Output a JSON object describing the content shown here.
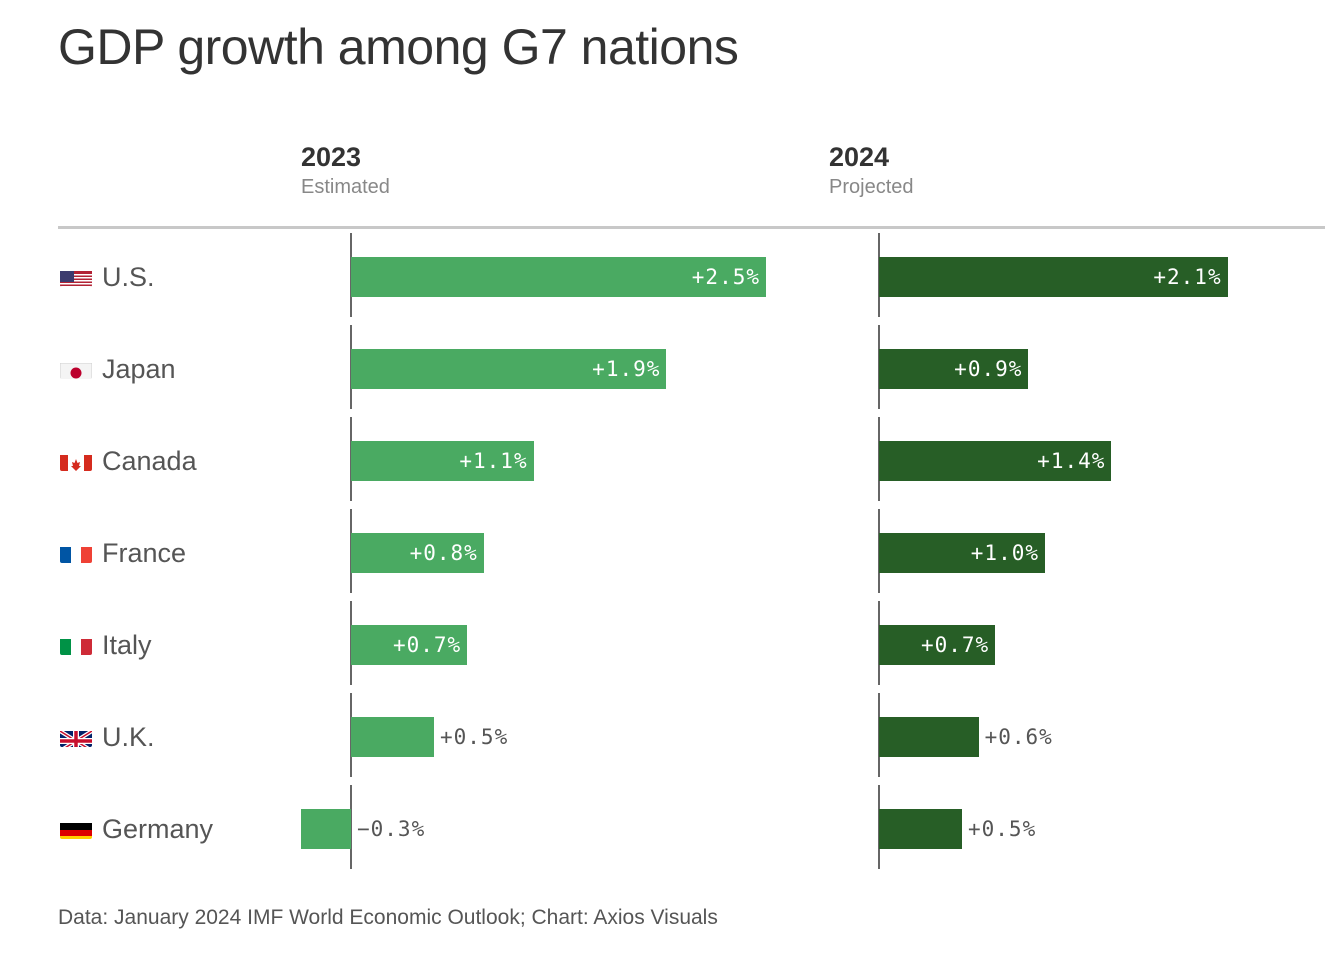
{
  "chart_data": {
    "type": "bar",
    "orientation": "horizontal",
    "title": "GDP growth among G7 nations",
    "categories": [
      "U.S.",
      "Japan",
      "Canada",
      "France",
      "Italy",
      "U.K.",
      "Germany"
    ],
    "flag_icons": [
      "us-flag-icon",
      "japan-flag-icon",
      "canada-flag-icon",
      "france-flag-icon",
      "italy-flag-icon",
      "uk-flag-icon",
      "germany-flag-icon"
    ],
    "series": [
      {
        "name": "2023",
        "subtitle": "Estimated",
        "color": "#4aaa62",
        "values": [
          2.5,
          1.9,
          1.1,
          0.8,
          0.7,
          0.5,
          -0.3
        ],
        "labels": [
          "+2.5%",
          "+1.9%",
          "+1.1%",
          "+0.8%",
          "+0.7%",
          "+0.5%",
          "−0.3%"
        ]
      },
      {
        "name": "2024",
        "subtitle": "Projected",
        "color": "#275e26",
        "values": [
          2.1,
          0.9,
          1.4,
          1.0,
          0.7,
          0.6,
          0.5
        ],
        "labels": [
          "+2.1%",
          "+0.9%",
          "+1.4%",
          "+1.0%",
          "+0.7%",
          "+0.6%",
          "+0.5%"
        ]
      }
    ],
    "value_unit": "%",
    "legend": "column headers",
    "grid": false
  },
  "footer": "Data: January 2024 IMF World Economic Outlook; Chart: Axios Visuals"
}
